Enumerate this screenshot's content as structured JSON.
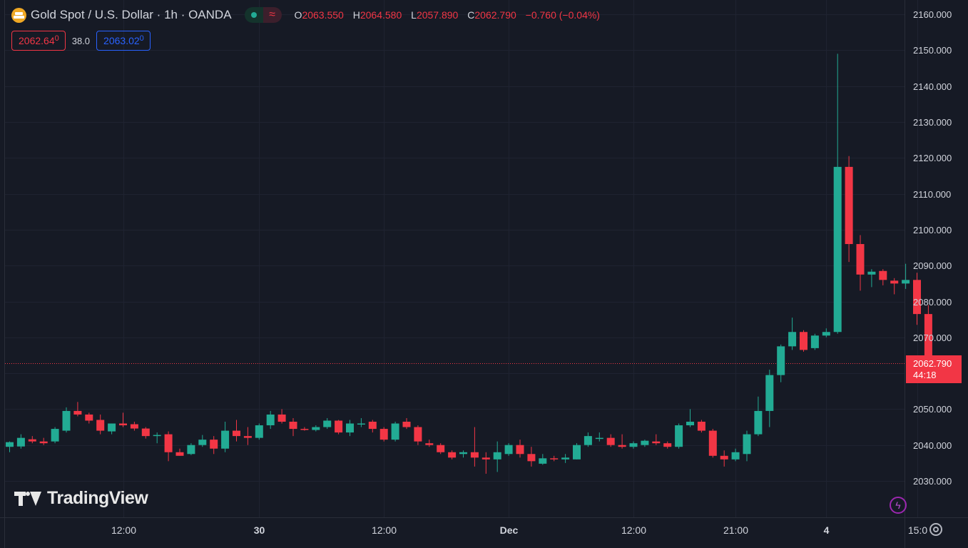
{
  "header": {
    "symbol_title": "Gold Spot / U.S. Dollar · 1h · OANDA",
    "symbol_icon": "gold-bars-icon",
    "market_status_icon": "market-open-dot-icon",
    "wave_icon": "wave-icon",
    "ohlc": {
      "o_label": "O",
      "o_value": "2063.550",
      "h_label": "H",
      "h_value": "2064.580",
      "l_label": "L",
      "l_value": "2057.890",
      "c_label": "C",
      "c_value": "2062.790",
      "change": "−0.760 (−0.04%)"
    },
    "bid": "2062.64",
    "bid_small": "0",
    "spread": "38.0",
    "ask": "2063.02",
    "ask_small": "0"
  },
  "last_price": {
    "price": "2062.790",
    "countdown": "44:18"
  },
  "watermark": {
    "text": "TradingView"
  },
  "colors": {
    "up": "#22ab94",
    "down": "#f23645",
    "background": "#161a25",
    "grid": "#1f2331",
    "ask": "#2962ff"
  },
  "icons": {
    "lightning": "lightning-icon",
    "settings": "settings-icon"
  },
  "chart_data": {
    "type": "candlestick",
    "title": "Gold Spot / U.S. Dollar · 1h · OANDA",
    "y_ticks": [
      2030,
      2040,
      2050,
      2060,
      2070,
      2080,
      2090,
      2100,
      2110,
      2120,
      2130,
      2140,
      2150,
      2160
    ],
    "y_tick_labels": [
      "2030.000",
      "2040.000",
      "2050.000",
      "2060.000",
      "2070.000",
      "2080.000",
      "2090.000",
      "2100.000",
      "2110.000",
      "2120.000",
      "2130.000",
      "2140.000",
      "2150.000",
      "2160.000"
    ],
    "x_tick_labels": [
      "12:00",
      "30",
      "12:00",
      "Dec",
      "12:00",
      "21:00",
      "4",
      "15:0"
    ],
    "x_tick_bar_index": [
      10,
      22,
      33,
      44,
      55,
      64,
      72,
      80
    ],
    "ylim": [
      2021.5,
      2162.5
    ],
    "grid": true,
    "last_price": 2062.79,
    "candles": [
      {
        "o": 2039.5,
        "h": 2041.0,
        "l": 2038.0,
        "c": 2040.8
      },
      {
        "o": 2039.6,
        "h": 2043.0,
        "l": 2039.0,
        "c": 2042.0
      },
      {
        "o": 2041.6,
        "h": 2042.5,
        "l": 2040.5,
        "c": 2041.0
      },
      {
        "o": 2041.0,
        "h": 2042.0,
        "l": 2040.0,
        "c": 2040.5
      },
      {
        "o": 2041.0,
        "h": 2045.0,
        "l": 2040.5,
        "c": 2044.5
      },
      {
        "o": 2044.0,
        "h": 2050.5,
        "l": 2043.5,
        "c": 2049.5
      },
      {
        "o": 2049.5,
        "h": 2052.0,
        "l": 2048.0,
        "c": 2048.5
      },
      {
        "o": 2048.5,
        "h": 2049.0,
        "l": 2046.0,
        "c": 2046.8
      },
      {
        "o": 2047.0,
        "h": 2048.5,
        "l": 2043.0,
        "c": 2044.0
      },
      {
        "o": 2043.8,
        "h": 2046.0,
        "l": 2043.0,
        "c": 2046.0
      },
      {
        "o": 2046.0,
        "h": 2049.0,
        "l": 2045.0,
        "c": 2045.5
      },
      {
        "o": 2045.8,
        "h": 2046.5,
        "l": 2044.0,
        "c": 2044.6
      },
      {
        "o": 2044.6,
        "h": 2045.0,
        "l": 2041.8,
        "c": 2042.5
      },
      {
        "o": 2042.5,
        "h": 2043.5,
        "l": 2040.5,
        "c": 2042.8
      },
      {
        "o": 2043.0,
        "h": 2043.8,
        "l": 2035.5,
        "c": 2038.0
      },
      {
        "o": 2038.0,
        "h": 2039.0,
        "l": 2037.0,
        "c": 2037.0
      },
      {
        "o": 2037.5,
        "h": 2040.5,
        "l": 2037.2,
        "c": 2040.0
      },
      {
        "o": 2040.0,
        "h": 2042.8,
        "l": 2039.5,
        "c": 2041.5
      },
      {
        "o": 2041.5,
        "h": 2042.5,
        "l": 2037.5,
        "c": 2039.0
      },
      {
        "o": 2039.0,
        "h": 2046.5,
        "l": 2038.0,
        "c": 2044.0
      },
      {
        "o": 2044.0,
        "h": 2047.0,
        "l": 2041.0,
        "c": 2042.5
      },
      {
        "o": 2042.5,
        "h": 2045.0,
        "l": 2040.0,
        "c": 2042.0
      },
      {
        "o": 2042.0,
        "h": 2046.0,
        "l": 2041.5,
        "c": 2045.5
      },
      {
        "o": 2045.5,
        "h": 2049.5,
        "l": 2044.5,
        "c": 2048.5
      },
      {
        "o": 2048.5,
        "h": 2050.0,
        "l": 2046.0,
        "c": 2046.5
      },
      {
        "o": 2046.5,
        "h": 2047.5,
        "l": 2042.5,
        "c": 2044.5
      },
      {
        "o": 2044.5,
        "h": 2045.0,
        "l": 2044.0,
        "c": 2044.2
      },
      {
        "o": 2044.2,
        "h": 2045.5,
        "l": 2043.8,
        "c": 2045.0
      },
      {
        "o": 2045.0,
        "h": 2047.5,
        "l": 2044.5,
        "c": 2046.8
      },
      {
        "o": 2046.8,
        "h": 2047.0,
        "l": 2043.0,
        "c": 2043.5
      },
      {
        "o": 2043.5,
        "h": 2047.0,
        "l": 2042.5,
        "c": 2046.0
      },
      {
        "o": 2046.0,
        "h": 2047.5,
        "l": 2045.0,
        "c": 2046.0
      },
      {
        "o": 2046.5,
        "h": 2047.0,
        "l": 2043.5,
        "c": 2044.5
      },
      {
        "o": 2044.5,
        "h": 2045.0,
        "l": 2041.0,
        "c": 2041.5
      },
      {
        "o": 2041.5,
        "h": 2046.5,
        "l": 2041.0,
        "c": 2046.0
      },
      {
        "o": 2046.5,
        "h": 2047.5,
        "l": 2044.5,
        "c": 2045.0
      },
      {
        "o": 2045.0,
        "h": 2045.5,
        "l": 2040.0,
        "c": 2041.0
      },
      {
        "o": 2040.5,
        "h": 2041.5,
        "l": 2039.5,
        "c": 2040.0
      },
      {
        "o": 2040.0,
        "h": 2040.5,
        "l": 2037.5,
        "c": 2038.0
      },
      {
        "o": 2038.0,
        "h": 2038.5,
        "l": 2036.0,
        "c": 2036.5
      },
      {
        "o": 2037.5,
        "h": 2038.5,
        "l": 2036.5,
        "c": 2038.0
      },
      {
        "o": 2038.0,
        "h": 2045.0,
        "l": 2034.0,
        "c": 2036.5
      },
      {
        "o": 2036.5,
        "h": 2038.0,
        "l": 2032.0,
        "c": 2036.0
      },
      {
        "o": 2036.0,
        "h": 2041.0,
        "l": 2032.5,
        "c": 2038.0
      },
      {
        "o": 2037.5,
        "h": 2040.5,
        "l": 2037.0,
        "c": 2040.0
      },
      {
        "o": 2040.0,
        "h": 2041.5,
        "l": 2036.5,
        "c": 2037.5
      },
      {
        "o": 2037.5,
        "h": 2039.5,
        "l": 2034.0,
        "c": 2035.5
      },
      {
        "o": 2034.8,
        "h": 2037.5,
        "l": 2034.5,
        "c": 2036.3
      },
      {
        "o": 2036.3,
        "h": 2037.0,
        "l": 2035.5,
        "c": 2036.0
      },
      {
        "o": 2036.0,
        "h": 2037.5,
        "l": 2035.0,
        "c": 2036.5
      },
      {
        "o": 2036.0,
        "h": 2040.5,
        "l": 2036.0,
        "c": 2040.0
      },
      {
        "o": 2040.0,
        "h": 2043.5,
        "l": 2039.5,
        "c": 2042.5
      },
      {
        "o": 2042.0,
        "h": 2043.5,
        "l": 2041.0,
        "c": 2042.0
      },
      {
        "o": 2042.0,
        "h": 2043.0,
        "l": 2039.5,
        "c": 2040.0
      },
      {
        "o": 2040.0,
        "h": 2043.0,
        "l": 2039.0,
        "c": 2039.5
      },
      {
        "o": 2039.5,
        "h": 2041.0,
        "l": 2039.0,
        "c": 2040.5
      },
      {
        "o": 2040.0,
        "h": 2041.5,
        "l": 2039.5,
        "c": 2041.2
      },
      {
        "o": 2041.0,
        "h": 2043.0,
        "l": 2040.0,
        "c": 2040.5
      },
      {
        "o": 2040.5,
        "h": 2041.0,
        "l": 2039.0,
        "c": 2039.5
      },
      {
        "o": 2039.5,
        "h": 2046.0,
        "l": 2039.0,
        "c": 2045.5
      },
      {
        "o": 2045.5,
        "h": 2050.0,
        "l": 2045.0,
        "c": 2046.5
      },
      {
        "o": 2046.5,
        "h": 2047.0,
        "l": 2043.5,
        "c": 2044.0
      },
      {
        "o": 2044.0,
        "h": 2044.5,
        "l": 2036.5,
        "c": 2037.0
      },
      {
        "o": 2037.0,
        "h": 2038.5,
        "l": 2034.0,
        "c": 2036.0
      },
      {
        "o": 2036.0,
        "h": 2039.0,
        "l": 2035.5,
        "c": 2038.0
      },
      {
        "o": 2037.5,
        "h": 2044.0,
        "l": 2035.5,
        "c": 2043.0
      },
      {
        "o": 2043.0,
        "h": 2053.5,
        "l": 2042.5,
        "c": 2049.5
      },
      {
        "o": 2049.5,
        "h": 2061.0,
        "l": 2045.0,
        "c": 2059.5
      },
      {
        "o": 2059.5,
        "h": 2068.0,
        "l": 2057.5,
        "c": 2067.5
      },
      {
        "o": 2067.5,
        "h": 2075.5,
        "l": 2066.5,
        "c": 2071.5
      },
      {
        "o": 2071.5,
        "h": 2072.0,
        "l": 2066.0,
        "c": 2066.5
      },
      {
        "o": 2067.0,
        "h": 2071.0,
        "l": 2066.5,
        "c": 2070.5
      },
      {
        "o": 2070.5,
        "h": 2072.5,
        "l": 2070.0,
        "c": 2071.5
      },
      {
        "o": 2071.5,
        "h": 2149.0,
        "l": 2071.0,
        "c": 2117.5
      },
      {
        "o": 2117.5,
        "h": 2120.5,
        "l": 2091.0,
        "c": 2096.0
      },
      {
        "o": 2096.0,
        "h": 2098.5,
        "l": 2083.0,
        "c": 2087.5
      },
      {
        "o": 2087.5,
        "h": 2089.0,
        "l": 2084.0,
        "c": 2088.3
      },
      {
        "o": 2088.5,
        "h": 2089.0,
        "l": 2084.5,
        "c": 2086.0
      },
      {
        "o": 2085.8,
        "h": 2086.5,
        "l": 2082.0,
        "c": 2085.0
      },
      {
        "o": 2085.0,
        "h": 2090.5,
        "l": 2083.5,
        "c": 2086.0
      },
      {
        "o": 2086.0,
        "h": 2088.0,
        "l": 2073.5,
        "c": 2076.5
      },
      {
        "o": 2076.5,
        "h": 2079.0,
        "l": 2062.0,
        "c": 2063.5
      },
      {
        "o": 2063.55,
        "h": 2064.58,
        "l": 2057.89,
        "c": 2062.79
      }
    ]
  }
}
